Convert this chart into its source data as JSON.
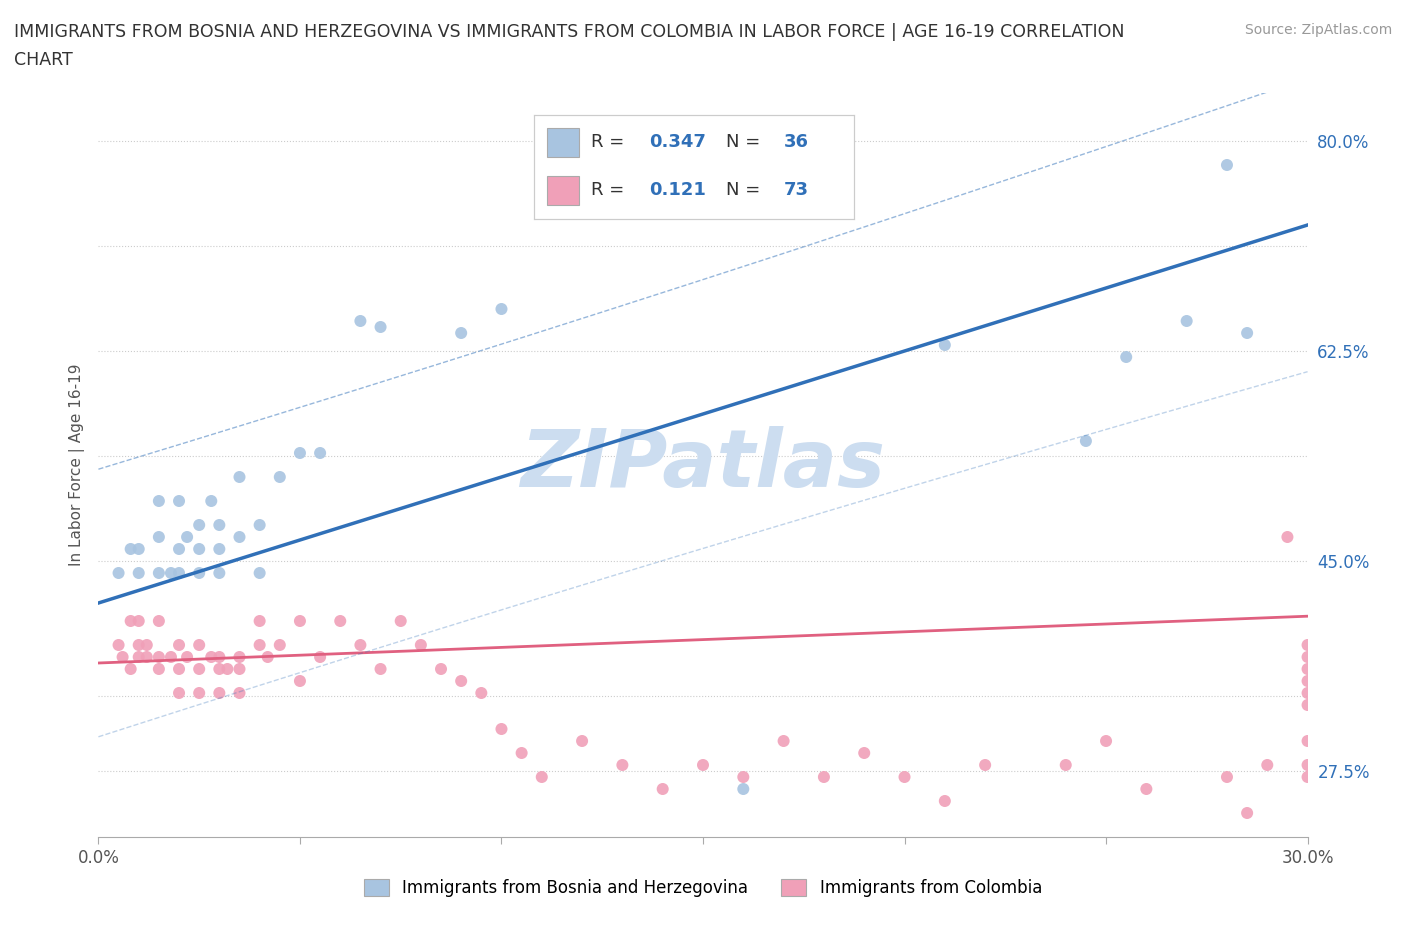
{
  "title_line1": "IMMIGRANTS FROM BOSNIA AND HERZEGOVINA VS IMMIGRANTS FROM COLOMBIA IN LABOR FORCE | AGE 16-19 CORRELATION",
  "title_line2": "CHART",
  "source": "Source: ZipAtlas.com",
  "ylabel": "In Labor Force | Age 16-19",
  "xlim": [
    0.0,
    0.3
  ],
  "ylim": [
    0.22,
    0.84
  ],
  "xticks": [
    0.0,
    0.05,
    0.1,
    0.15,
    0.2,
    0.25,
    0.3
  ],
  "yticks_right": [
    0.275,
    0.3375,
    0.45,
    0.5375,
    0.625,
    0.7125,
    0.8
  ],
  "ytick_labels_right": [
    "27.5%",
    "",
    "45.0%",
    "",
    "62.5%",
    "",
    "80.0%"
  ],
  "bosnia_R": 0.347,
  "bosnia_N": 36,
  "colombia_R": 0.121,
  "colombia_N": 73,
  "bosnia_color": "#a8c4e0",
  "colombia_color": "#f0a0b8",
  "bosnia_line_color": "#3070b8",
  "colombia_line_color": "#e06080",
  "watermark": "ZIPatlas",
  "watermark_color": "#ccddf0",
  "bosnia_intercept": 0.415,
  "bosnia_slope": 1.05,
  "colombia_intercept": 0.365,
  "colombia_slope": 0.13,
  "bosnia_scatter_x": [
    0.005,
    0.008,
    0.01,
    0.01,
    0.015,
    0.015,
    0.015,
    0.018,
    0.02,
    0.02,
    0.02,
    0.022,
    0.025,
    0.025,
    0.025,
    0.028,
    0.03,
    0.03,
    0.03,
    0.035,
    0.035,
    0.04,
    0.04,
    0.045,
    0.05,
    0.055,
    0.065,
    0.07,
    0.09,
    0.1,
    0.16,
    0.21,
    0.245,
    0.255,
    0.27,
    0.285
  ],
  "bosnia_scatter_y": [
    0.44,
    0.46,
    0.44,
    0.46,
    0.44,
    0.47,
    0.5,
    0.44,
    0.44,
    0.46,
    0.5,
    0.47,
    0.44,
    0.46,
    0.48,
    0.5,
    0.44,
    0.46,
    0.48,
    0.47,
    0.52,
    0.44,
    0.48,
    0.52,
    0.54,
    0.54,
    0.65,
    0.645,
    0.64,
    0.66,
    0.26,
    0.63,
    0.55,
    0.62,
    0.65,
    0.64
  ],
  "colombia_scatter_x": [
    0.005,
    0.006,
    0.008,
    0.008,
    0.01,
    0.01,
    0.01,
    0.012,
    0.012,
    0.015,
    0.015,
    0.015,
    0.018,
    0.02,
    0.02,
    0.02,
    0.022,
    0.025,
    0.025,
    0.025,
    0.028,
    0.03,
    0.03,
    0.03,
    0.032,
    0.035,
    0.035,
    0.035,
    0.04,
    0.04,
    0.042,
    0.045,
    0.05,
    0.05,
    0.055,
    0.06,
    0.065,
    0.07,
    0.075,
    0.08,
    0.085,
    0.09,
    0.095,
    0.1,
    0.105,
    0.11,
    0.12,
    0.13,
    0.14,
    0.15,
    0.16,
    0.17,
    0.18,
    0.19,
    0.2,
    0.21,
    0.22,
    0.24,
    0.25,
    0.26,
    0.28,
    0.285,
    0.29,
    0.295,
    0.3,
    0.3,
    0.3,
    0.3,
    0.3,
    0.3,
    0.3,
    0.3,
    0.3
  ],
  "colombia_scatter_y": [
    0.38,
    0.37,
    0.36,
    0.4,
    0.37,
    0.38,
    0.4,
    0.37,
    0.38,
    0.36,
    0.37,
    0.4,
    0.37,
    0.34,
    0.36,
    0.38,
    0.37,
    0.34,
    0.36,
    0.38,
    0.37,
    0.34,
    0.36,
    0.37,
    0.36,
    0.34,
    0.36,
    0.37,
    0.38,
    0.4,
    0.37,
    0.38,
    0.35,
    0.4,
    0.37,
    0.4,
    0.38,
    0.36,
    0.4,
    0.38,
    0.36,
    0.35,
    0.34,
    0.31,
    0.29,
    0.27,
    0.3,
    0.28,
    0.26,
    0.28,
    0.27,
    0.3,
    0.27,
    0.29,
    0.27,
    0.25,
    0.28,
    0.28,
    0.3,
    0.26,
    0.27,
    0.24,
    0.28,
    0.47,
    0.34,
    0.36,
    0.37,
    0.38,
    0.35,
    0.33,
    0.3,
    0.28,
    0.27
  ]
}
